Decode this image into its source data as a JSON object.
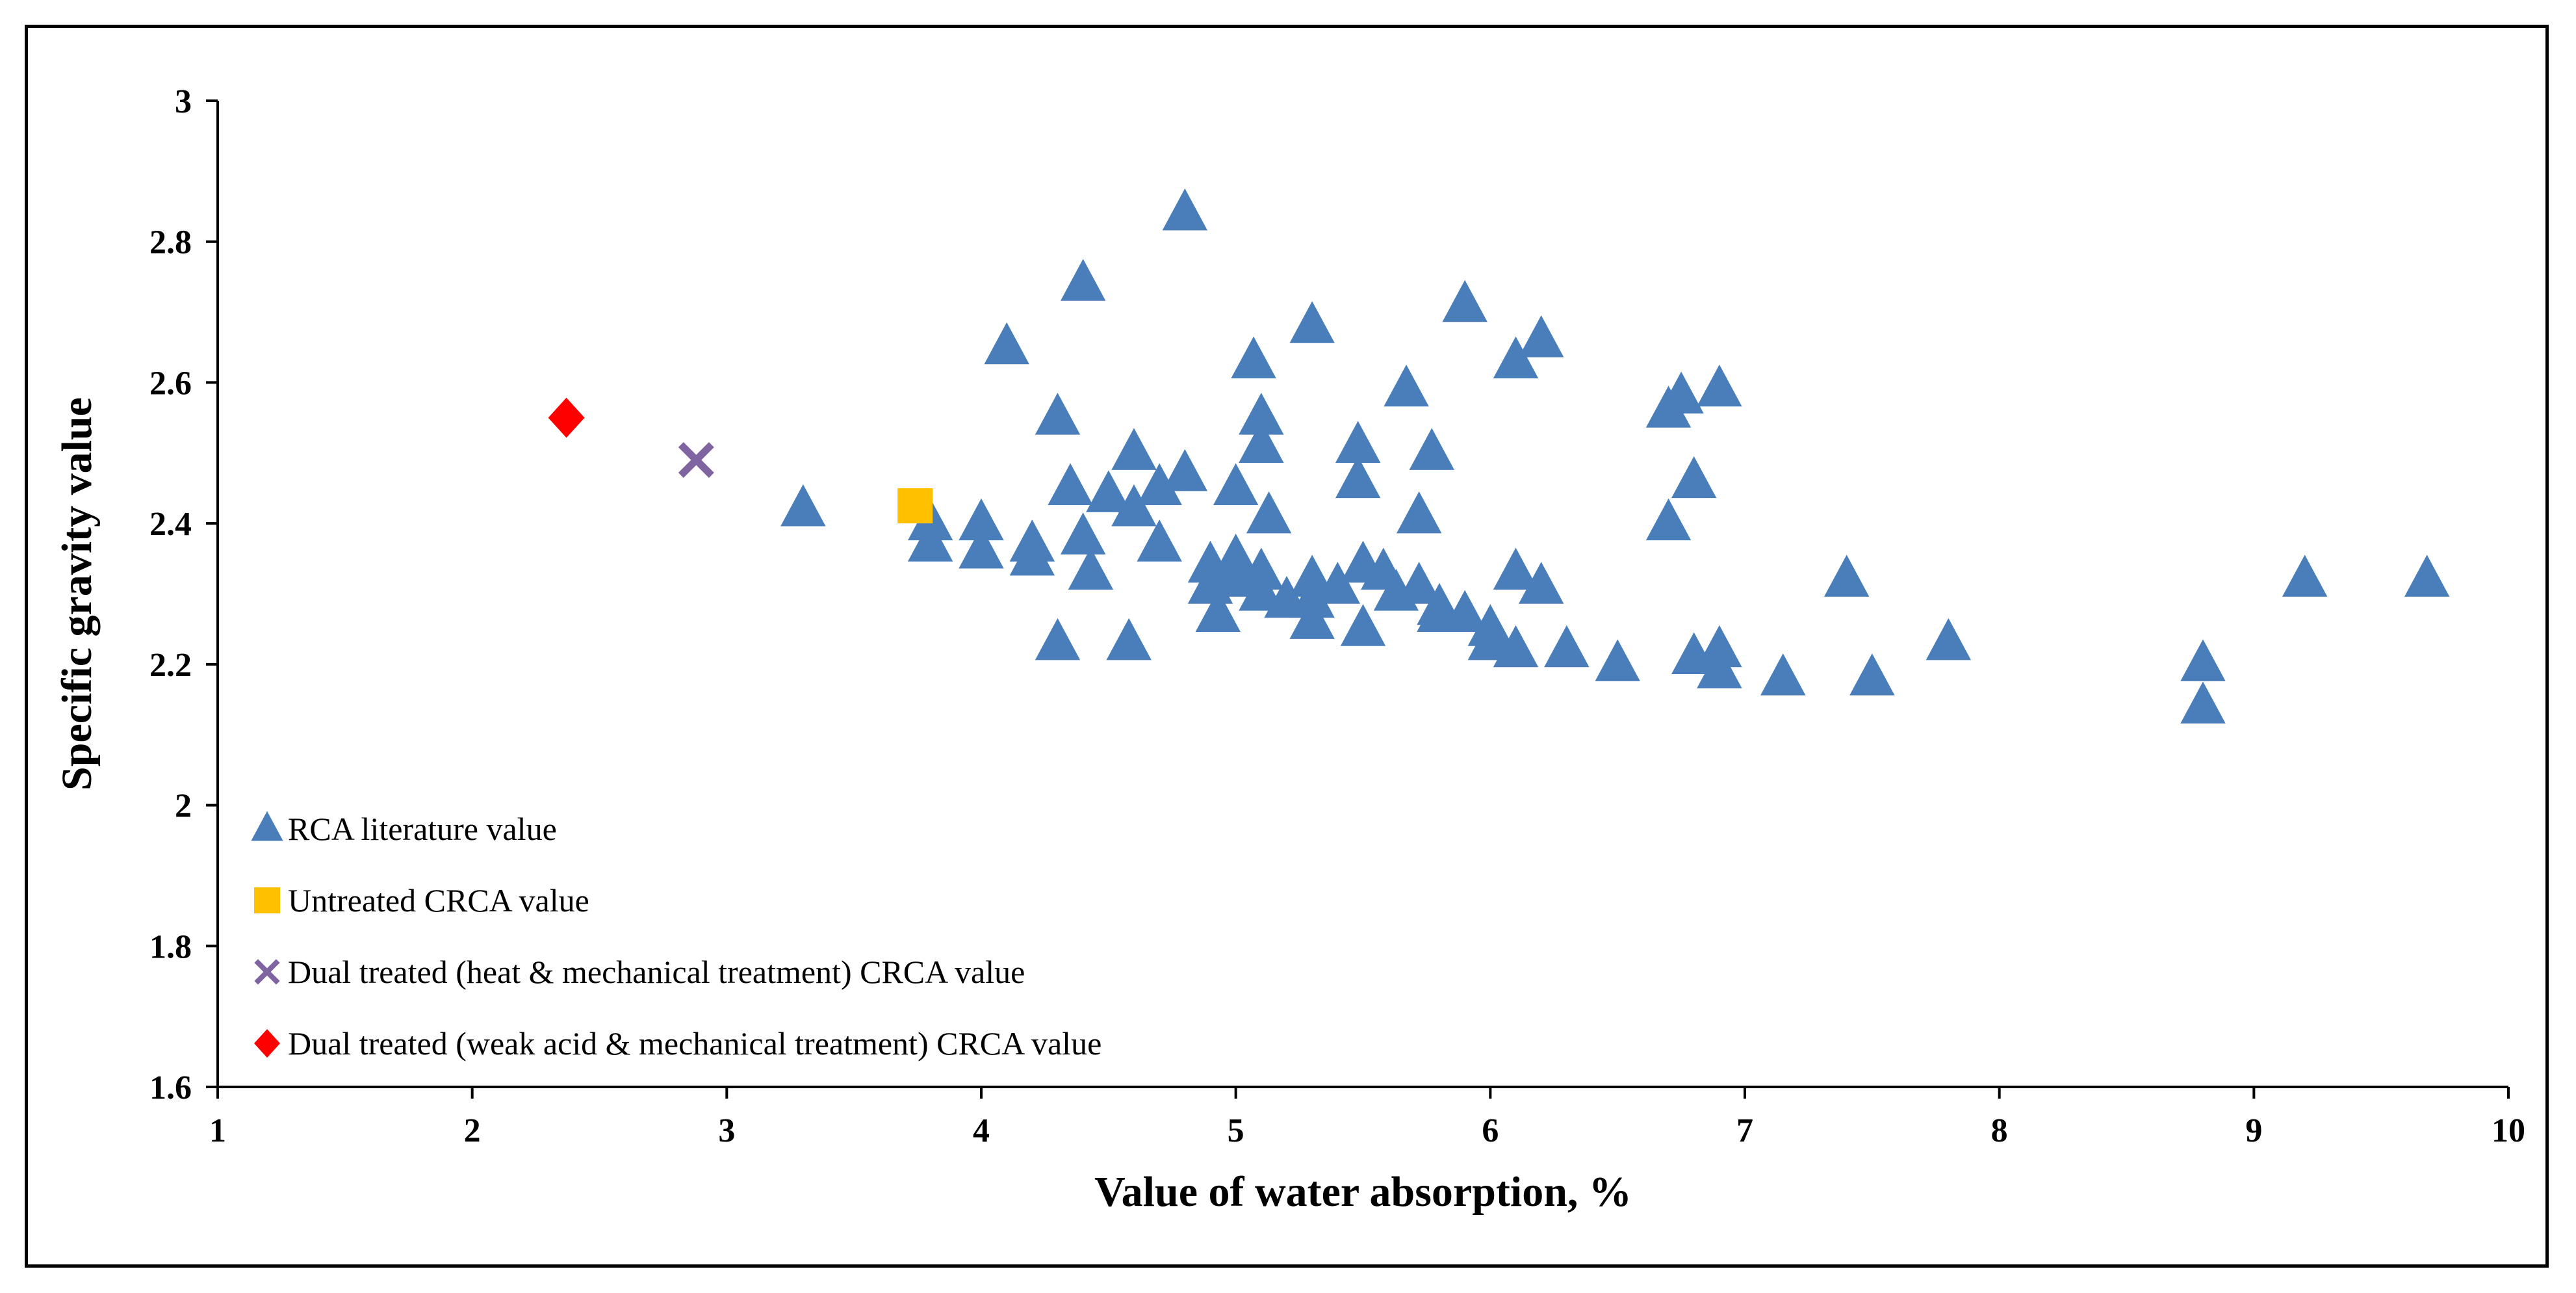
{
  "chart_data": {
    "type": "scatter",
    "title": "",
    "xlabel": "Value of water absorption, %",
    "ylabel": "Specific gravity value",
    "xlim": [
      1,
      10
    ],
    "ylim": [
      1.6,
      3
    ],
    "x_ticks": [
      "1",
      "2",
      "3",
      "4",
      "5",
      "6",
      "7",
      "8",
      "9",
      "10"
    ],
    "y_ticks": [
      "1.6",
      "1.8",
      "2",
      "2.2",
      "2.4",
      "2.6",
      "2.8",
      "3"
    ],
    "grid": false,
    "legend_position": "bottom-left",
    "series": [
      {
        "name": "RCA literature value",
        "marker": "triangle",
        "color": "#4A7EBB",
        "points": [
          [
            3.3,
            2.42
          ],
          [
            3.8,
            2.4
          ],
          [
            3.8,
            2.37
          ],
          [
            4.0,
            2.4
          ],
          [
            4.0,
            2.36
          ],
          [
            4.1,
            2.65
          ],
          [
            4.2,
            2.37
          ],
          [
            4.2,
            2.35
          ],
          [
            4.3,
            2.55
          ],
          [
            4.3,
            2.23
          ],
          [
            4.35,
            2.45
          ],
          [
            4.4,
            2.74
          ],
          [
            4.4,
            2.38
          ],
          [
            4.43,
            2.33
          ],
          [
            4.5,
            2.44
          ],
          [
            4.58,
            2.23
          ],
          [
            4.6,
            2.5
          ],
          [
            4.6,
            2.42
          ],
          [
            4.7,
            2.45
          ],
          [
            4.7,
            2.37
          ],
          [
            4.8,
            2.84
          ],
          [
            4.8,
            2.47
          ],
          [
            4.9,
            2.34
          ],
          [
            4.9,
            2.31
          ],
          [
            4.93,
            2.27
          ],
          [
            5.0,
            2.45
          ],
          [
            5.0,
            2.35
          ],
          [
            5.0,
            2.32
          ],
          [
            5.07,
            2.63
          ],
          [
            5.1,
            2.55
          ],
          [
            5.1,
            2.51
          ],
          [
            5.1,
            2.33
          ],
          [
            5.1,
            2.3
          ],
          [
            5.13,
            2.41
          ],
          [
            5.2,
            2.29
          ],
          [
            5.3,
            2.68
          ],
          [
            5.3,
            2.32
          ],
          [
            5.3,
            2.29
          ],
          [
            5.3,
            2.26
          ],
          [
            5.4,
            2.31
          ],
          [
            5.48,
            2.51
          ],
          [
            5.48,
            2.46
          ],
          [
            5.5,
            2.34
          ],
          [
            5.5,
            2.25
          ],
          [
            5.58,
            2.33
          ],
          [
            5.63,
            2.3
          ],
          [
            5.67,
            2.59
          ],
          [
            5.72,
            2.41
          ],
          [
            5.72,
            2.31
          ],
          [
            5.77,
            2.5
          ],
          [
            5.8,
            2.28
          ],
          [
            5.8,
            2.27
          ],
          [
            5.9,
            2.71
          ],
          [
            5.9,
            2.27
          ],
          [
            6.0,
            2.25
          ],
          [
            6.0,
            2.23
          ],
          [
            6.1,
            2.63
          ],
          [
            6.1,
            2.33
          ],
          [
            6.1,
            2.22
          ],
          [
            6.2,
            2.66
          ],
          [
            6.2,
            2.31
          ],
          [
            6.3,
            2.22
          ],
          [
            6.5,
            2.2
          ],
          [
            6.7,
            2.56
          ],
          [
            6.7,
            2.4
          ],
          [
            6.75,
            2.58
          ],
          [
            6.8,
            2.46
          ],
          [
            6.8,
            2.21
          ],
          [
            6.9,
            2.59
          ],
          [
            6.9,
            2.22
          ],
          [
            6.9,
            2.19
          ],
          [
            7.15,
            2.18
          ],
          [
            7.4,
            2.32
          ],
          [
            7.5,
            2.18
          ],
          [
            7.8,
            2.23
          ],
          [
            8.8,
            2.2
          ],
          [
            8.8,
            2.14
          ],
          [
            9.2,
            2.32
          ],
          [
            9.68,
            2.32
          ]
        ]
      },
      {
        "name": "Untreated CRCA value",
        "marker": "square",
        "color": "#FFC000",
        "points": [
          [
            3.74,
            2.425
          ]
        ]
      },
      {
        "name": "Dual treated (heat & mechanical treatment) CRCA value",
        "marker": "x",
        "color": "#8064A2",
        "points": [
          [
            2.88,
            2.49
          ]
        ]
      },
      {
        "name": "Dual treated (weak acid & mechanical treatment) CRCA value",
        "marker": "diamond",
        "color": "#FF0000",
        "points": [
          [
            2.37,
            2.55
          ]
        ]
      }
    ]
  }
}
